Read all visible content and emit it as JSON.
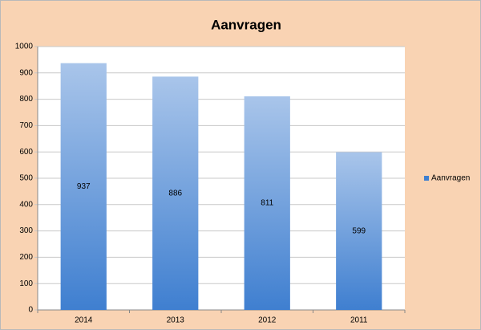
{
  "chart_data": {
    "type": "bar",
    "title": "Aanvragen",
    "categories": [
      "2014",
      "2013",
      "2012",
      "2011"
    ],
    "series": [
      {
        "name": "Aanvragen",
        "color": "#3f7fd0",
        "values": [
          937,
          886,
          811,
          599
        ]
      }
    ],
    "ylim": [
      0,
      1000
    ],
    "yticks": [
      0,
      100,
      200,
      300,
      400,
      500,
      600,
      700,
      800,
      900,
      1000
    ],
    "grid": true,
    "legend": "right"
  }
}
